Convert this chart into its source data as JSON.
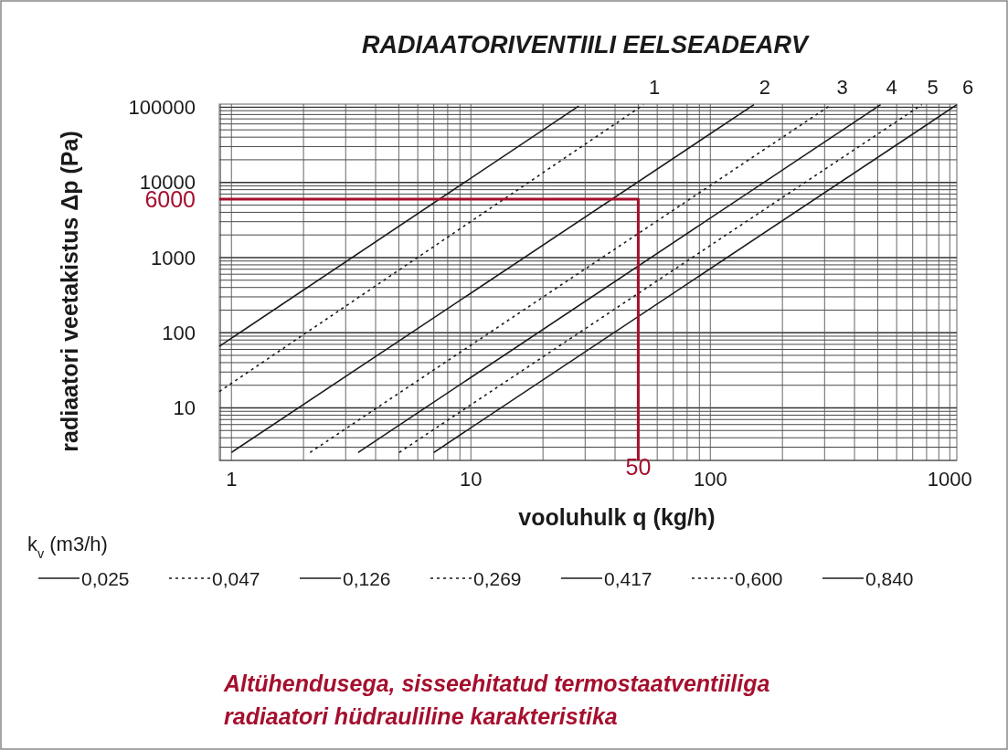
{
  "chart_data": {
    "type": "line",
    "title": "RADIAATORIVENTIILI EELSEADEARV",
    "xlabel": "vooluhulk q (kg/h)",
    "ylabel": "radiaatori veetakistus Δp (Pa)",
    "legend_title": "k$_{v}$ (m3/h)",
    "log": "xy",
    "xlim": [
      0.89,
      1070
    ],
    "ylim": [
      2,
      110000
    ],
    "xticks": [
      1,
      10,
      100,
      1000
    ],
    "yticks": [
      10,
      100,
      1000,
      10000,
      100000
    ],
    "grid": true,
    "legend": "bottom",
    "series": [
      {
        "name": "0,025",
        "color": "#1a1a1a",
        "line_style": "solid",
        "x": [
          0.89,
          28.2
        ],
        "values": [
          66,
          103700
        ]
      },
      {
        "name": "0,047",
        "color": "#1a1a1a",
        "line_style": "dashed",
        "x": [
          0.89,
          52.6
        ],
        "values": [
          16.5,
          108000
        ]
      },
      {
        "name": "0,126",
        "color": "#1a1a1a",
        "line_style": "solid",
        "x": [
          1.0,
          152
        ],
        "values": [
          2.55,
          108000
        ]
      },
      {
        "name": "0,269",
        "color": "#1a1a1a",
        "line_style": "dashed",
        "x": [
          2.13,
          320
        ],
        "values": [
          2.55,
          108000
        ]
      },
      {
        "name": "0,417",
        "color": "#1a1a1a",
        "line_style": "solid",
        "x": [
          3.38,
          514
        ],
        "values": [
          2.55,
          108000
        ]
      },
      {
        "name": "0,600",
        "color": "#1a1a1a",
        "line_style": "dashed",
        "x": [
          5.02,
          764
        ],
        "values": [
          2.55,
          108000
        ]
      },
      {
        "name": "0,840",
        "color": "#1a1a1a",
        "line_style": "solid",
        "x": [
          7.0,
          1070
        ],
        "values": [
          2.55,
          108000
        ]
      },
      {
        "color": "#a50f2d",
        "line_style": "solid",
        "x": [
          0.89,
          50,
          50
        ],
        "values": [
          6000,
          6000,
          2
        ]
      }
    ],
    "annotations": [
      {
        "text": "1",
        "x": 52.6,
        "y": 108000
      },
      {
        "text": "2",
        "x": 152,
        "y": 108000
      },
      {
        "text": "3",
        "x": 320,
        "y": 108000
      },
      {
        "text": "4",
        "x": 514,
        "y": 108000
      },
      {
        "text": "5",
        "x": 764,
        "y": 108000
      },
      {
        "text": "6",
        "x": 1070,
        "y": 108000
      },
      {
        "text": "6000",
        "x": 0.89,
        "y": 6000
      },
      {
        "text": "50",
        "x": 50,
        "y": 2
      },
      "Altühendusega, sisseehitatud termostaatventiiliga\nradiaatori hüdrauliline karakteristika"
    ]
  }
}
